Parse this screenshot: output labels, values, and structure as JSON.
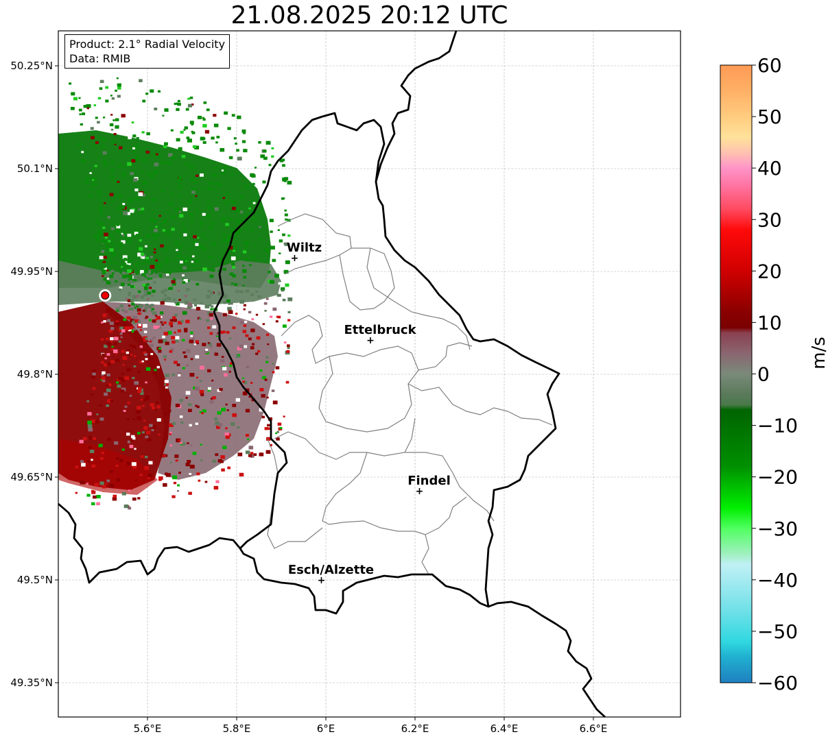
{
  "title": "21.08.2025 20:12 UTC",
  "info": {
    "product": "Product: 2.1° Radial Velocity",
    "data": "Data: RMIB"
  },
  "axes": {
    "lat_ticks": [
      {
        "value": 50.25,
        "label": "50.25°N"
      },
      {
        "value": 50.1,
        "label": "50.1°N"
      },
      {
        "value": 49.95,
        "label": "49.95°N"
      },
      {
        "value": 49.8,
        "label": "49.8°N"
      },
      {
        "value": 49.65,
        "label": "49.65°N"
      },
      {
        "value": 49.5,
        "label": "49.5°N"
      },
      {
        "value": 49.35,
        "label": "49.35°N"
      }
    ],
    "lon_ticks": [
      {
        "value": 5.6,
        "label": "5.6°E"
      },
      {
        "value": 5.8,
        "label": "5.8°E"
      },
      {
        "value": 6.0,
        "label": "6°E"
      },
      {
        "value": 6.2,
        "label": "6.2°E"
      },
      {
        "value": 6.4,
        "label": "6.4°E"
      },
      {
        "value": 6.6,
        "label": "6.6°E"
      }
    ]
  },
  "cities": [
    {
      "name": "Wiltz",
      "lon": 5.93,
      "lat": 49.97
    },
    {
      "name": "Ettelbruck",
      "lon": 6.1,
      "lat": 49.85
    },
    {
      "name": "Findel",
      "lon": 6.21,
      "lat": 49.63
    },
    {
      "name": "Esch/Alzette",
      "lon": 5.99,
      "lat": 49.5
    }
  ],
  "radar": {
    "name": "Radar site",
    "lon": 5.505,
    "lat": 49.915
  },
  "colorbar": {
    "unit": "m/s",
    "ticks": [
      {
        "value": 60,
        "label": "60"
      },
      {
        "value": 50,
        "label": "50"
      },
      {
        "value": 40,
        "label": "40"
      },
      {
        "value": 30,
        "label": "30"
      },
      {
        "value": 20,
        "label": "20"
      },
      {
        "value": 10,
        "label": "10"
      },
      {
        "value": 0,
        "label": "0"
      },
      {
        "value": -10,
        "label": "−10"
      },
      {
        "value": -20,
        "label": "−20"
      },
      {
        "value": -30,
        "label": "−30"
      },
      {
        "value": -40,
        "label": "−40"
      },
      {
        "value": -50,
        "label": "−50"
      },
      {
        "value": -60,
        "label": "−60"
      }
    ],
    "stops": [
      {
        "v": 60,
        "c": "#ff9a55"
      },
      {
        "v": 55,
        "c": "#ffb066"
      },
      {
        "v": 50,
        "c": "#ffcc7f"
      },
      {
        "v": 46,
        "c": "#ffe29a"
      },
      {
        "v": 43,
        "c": "#ffc2b0"
      },
      {
        "v": 40,
        "c": "#ff94c8"
      },
      {
        "v": 36,
        "c": "#ff6e9a"
      },
      {
        "v": 32,
        "c": "#ff4a60"
      },
      {
        "v": 28,
        "c": "#ff0a0a"
      },
      {
        "v": 20,
        "c": "#d00000"
      },
      {
        "v": 12,
        "c": "#8a0000"
      },
      {
        "v": 9,
        "c": "#7a0000"
      },
      {
        "v": 8,
        "c": "#8a4050"
      },
      {
        "v": 4,
        "c": "#8a6670"
      },
      {
        "v": 0,
        "c": "#7a8a7a"
      },
      {
        "v": -4,
        "c": "#5a7a5a"
      },
      {
        "v": -6,
        "c": "#4a7a4a"
      },
      {
        "v": -7,
        "c": "#006400"
      },
      {
        "v": -18,
        "c": "#009000"
      },
      {
        "v": -26,
        "c": "#00ee00"
      },
      {
        "v": -30,
        "c": "#50ff60"
      },
      {
        "v": -35,
        "c": "#a0f0c0"
      },
      {
        "v": -37,
        "c": "#c0f0f5"
      },
      {
        "v": -46,
        "c": "#70e0e8"
      },
      {
        "v": -52,
        "c": "#30d8e0"
      },
      {
        "v": -55,
        "c": "#20b0d0"
      },
      {
        "v": -60,
        "c": "#1f80c0"
      }
    ]
  },
  "colors": {
    "border": "#000000",
    "admin": "#808080",
    "grid": "#b0b0b0",
    "radar_marker": "#ee0000"
  }
}
